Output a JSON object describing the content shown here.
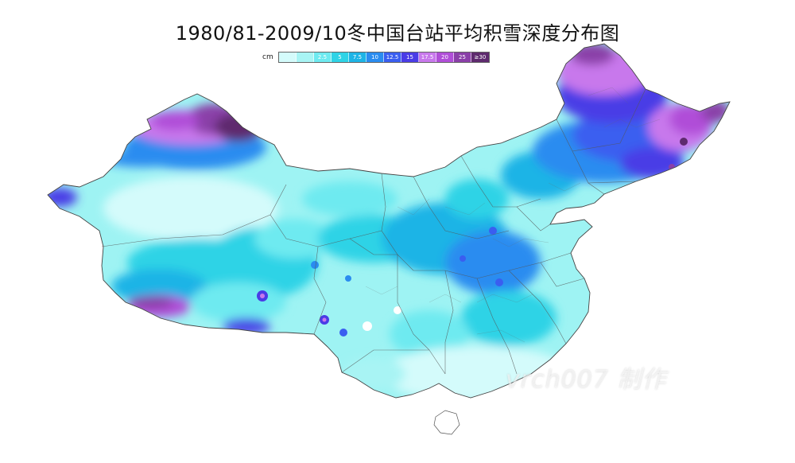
{
  "title": "1980/81-2009/10冬中国台站平均积雪深度分布图",
  "legend": {
    "unit": "cm",
    "bins": [
      {
        "label": "",
        "color": "#d4fbfb"
      },
      {
        "label": "",
        "color": "#a8f4f4"
      },
      {
        "label": "2.5",
        "color": "#6eeaf0"
      },
      {
        "label": "5",
        "color": "#2fd3e6"
      },
      {
        "label": "7.5",
        "color": "#1eb4e6"
      },
      {
        "label": "10",
        "color": "#2a8cf0"
      },
      {
        "label": "12.5",
        "color": "#3a5ef0"
      },
      {
        "label": "15",
        "color": "#4a3ce6"
      },
      {
        "label": "17.5",
        "color": "#c878ec"
      },
      {
        "label": "20",
        "color": "#b04ed8"
      },
      {
        "label": "25",
        "color": "#8a3fa8"
      },
      {
        "label": "≥30",
        "color": "#5e2a6e"
      }
    ]
  },
  "watermark": "vrch007 制作"
}
